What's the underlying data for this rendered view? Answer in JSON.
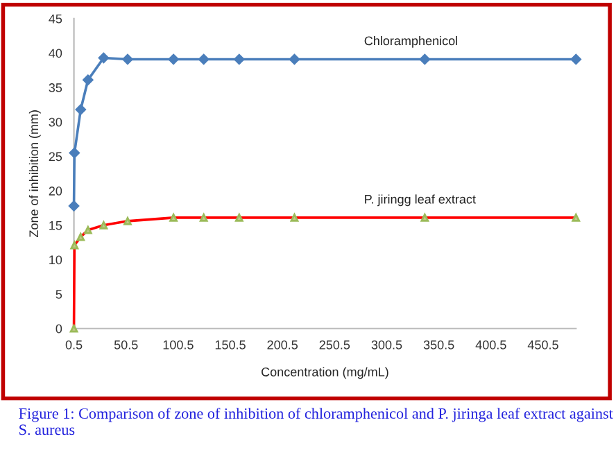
{
  "chart_data": {
    "type": "line",
    "xlabel": "Concentration (mg/mL)",
    "ylabel": "Zone of inhibition (mm)",
    "x": [
      0.5,
      1,
      7,
      14,
      29,
      52,
      96,
      125,
      159,
      212,
      337,
      482
    ],
    "series": [
      {
        "name": "Chloramphenicol",
        "color": "#4a7ebb",
        "marker": "diamond",
        "values": [
          17.8,
          25.5,
          31.8,
          36.1,
          39.3,
          39.1,
          39.1,
          39.1,
          39.1,
          39.1,
          39.1,
          39.1
        ]
      },
      {
        "name": "P. jiringg leaf extract",
        "color": "#ff0000",
        "marker": "triangle",
        "values": [
          0,
          12.1,
          13.3,
          14.3,
          15.0,
          15.6,
          16.1,
          16.1,
          16.1,
          16.1,
          16.1,
          16.1
        ]
      }
    ],
    "xlim": [
      0.5,
      482
    ],
    "xticks": [
      0.5,
      50.5,
      100.5,
      150.5,
      200.5,
      250.5,
      300.5,
      350.5,
      400.5,
      450.5
    ],
    "ylim": [
      0,
      45
    ],
    "yticks": [
      0,
      5,
      10,
      15,
      20,
      25,
      30,
      35,
      40,
      45
    ],
    "grid": false,
    "legend": false,
    "annotations": [
      "Figure 1: Comparison of zone of inhibition of chloramphenicol and P. jiringa leaf extract against S. aureus"
    ]
  }
}
